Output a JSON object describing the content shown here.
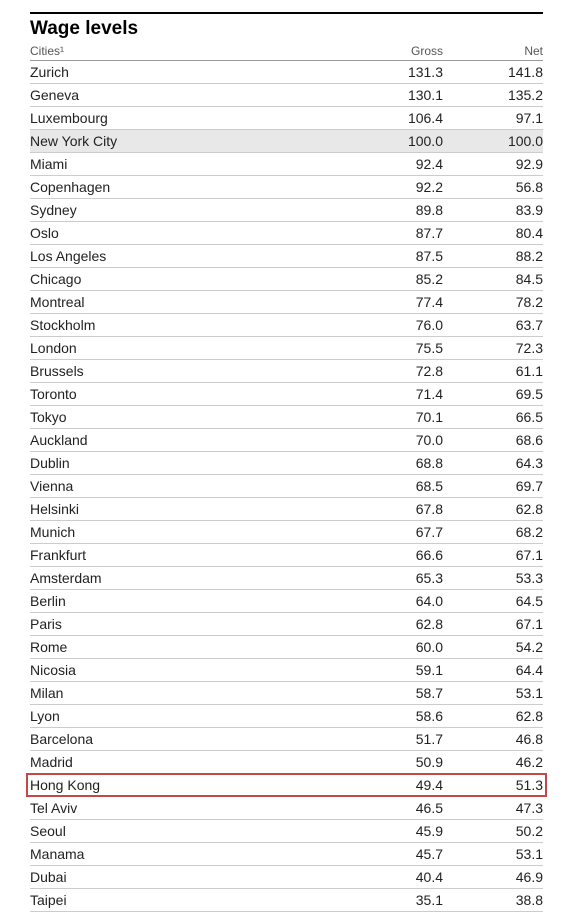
{
  "title": "Wage levels",
  "headers": {
    "city": "Cities¹",
    "gross": "Gross",
    "net": "Net"
  },
  "styling": {
    "background_color": "#ffffff",
    "title_fontsize": 19,
    "title_fontweight": "bold",
    "title_border_top": "2px solid #000",
    "header_fontsize": 12,
    "header_color": "#555",
    "row_fontsize": 14,
    "row_color": "#222",
    "row_border_color": "#ccc",
    "highlight_bg": "#e8e8e8",
    "box_border_color": "#c44848",
    "col_widths": {
      "gross": 110,
      "net": 100
    }
  },
  "rows": [
    {
      "city": "Zurich",
      "gross": "131.3",
      "net": "141.8",
      "highlighted": false,
      "boxed": false
    },
    {
      "city": "Geneva",
      "gross": "130.1",
      "net": "135.2",
      "highlighted": false,
      "boxed": false
    },
    {
      "city": "Luxembourg",
      "gross": "106.4",
      "net": "97.1",
      "highlighted": false,
      "boxed": false
    },
    {
      "city": "New York City",
      "gross": "100.0",
      "net": "100.0",
      "highlighted": true,
      "boxed": false
    },
    {
      "city": "Miami",
      "gross": "92.4",
      "net": "92.9",
      "highlighted": false,
      "boxed": false
    },
    {
      "city": "Copenhagen",
      "gross": "92.2",
      "net": "56.8",
      "highlighted": false,
      "boxed": false
    },
    {
      "city": "Sydney",
      "gross": "89.8",
      "net": "83.9",
      "highlighted": false,
      "boxed": false
    },
    {
      "city": "Oslo",
      "gross": "87.7",
      "net": "80.4",
      "highlighted": false,
      "boxed": false
    },
    {
      "city": "Los Angeles",
      "gross": "87.5",
      "net": "88.2",
      "highlighted": false,
      "boxed": false
    },
    {
      "city": "Chicago",
      "gross": "85.2",
      "net": "84.5",
      "highlighted": false,
      "boxed": false
    },
    {
      "city": "Montreal",
      "gross": "77.4",
      "net": "78.2",
      "highlighted": false,
      "boxed": false
    },
    {
      "city": "Stockholm",
      "gross": "76.0",
      "net": "63.7",
      "highlighted": false,
      "boxed": false
    },
    {
      "city": "London",
      "gross": "75.5",
      "net": "72.3",
      "highlighted": false,
      "boxed": false
    },
    {
      "city": "Brussels",
      "gross": "72.8",
      "net": "61.1",
      "highlighted": false,
      "boxed": false
    },
    {
      "city": "Toronto",
      "gross": "71.4",
      "net": "69.5",
      "highlighted": false,
      "boxed": false
    },
    {
      "city": "Tokyo",
      "gross": "70.1",
      "net": "66.5",
      "highlighted": false,
      "boxed": false
    },
    {
      "city": "Auckland",
      "gross": "70.0",
      "net": "68.6",
      "highlighted": false,
      "boxed": false
    },
    {
      "city": "Dublin",
      "gross": "68.8",
      "net": "64.3",
      "highlighted": false,
      "boxed": false
    },
    {
      "city": "Vienna",
      "gross": "68.5",
      "net": "69.7",
      "highlighted": false,
      "boxed": false
    },
    {
      "city": "Helsinki",
      "gross": "67.8",
      "net": "62.8",
      "highlighted": false,
      "boxed": false
    },
    {
      "city": "Munich",
      "gross": "67.7",
      "net": "68.2",
      "highlighted": false,
      "boxed": false
    },
    {
      "city": "Frankfurt",
      "gross": "66.6",
      "net": "67.1",
      "highlighted": false,
      "boxed": false
    },
    {
      "city": "Amsterdam",
      "gross": "65.3",
      "net": "53.3",
      "highlighted": false,
      "boxed": false
    },
    {
      "city": "Berlin",
      "gross": "64.0",
      "net": "64.5",
      "highlighted": false,
      "boxed": false
    },
    {
      "city": "Paris",
      "gross": "62.8",
      "net": "67.1",
      "highlighted": false,
      "boxed": false
    },
    {
      "city": "Rome",
      "gross": "60.0",
      "net": "54.2",
      "highlighted": false,
      "boxed": false
    },
    {
      "city": "Nicosia",
      "gross": "59.1",
      "net": "64.4",
      "highlighted": false,
      "boxed": false
    },
    {
      "city": "Milan",
      "gross": "58.7",
      "net": "53.1",
      "highlighted": false,
      "boxed": false
    },
    {
      "city": "Lyon",
      "gross": "58.6",
      "net": "62.8",
      "highlighted": false,
      "boxed": false
    },
    {
      "city": "Barcelona",
      "gross": "51.7",
      "net": "46.8",
      "highlighted": false,
      "boxed": false
    },
    {
      "city": "Madrid",
      "gross": "50.9",
      "net": "46.2",
      "highlighted": false,
      "boxed": false
    },
    {
      "city": "Hong Kong",
      "gross": "49.4",
      "net": "51.3",
      "highlighted": false,
      "boxed": true
    },
    {
      "city": "Tel Aviv",
      "gross": "46.5",
      "net": "47.3",
      "highlighted": false,
      "boxed": false
    },
    {
      "city": "Seoul",
      "gross": "45.9",
      "net": "50.2",
      "highlighted": false,
      "boxed": false
    },
    {
      "city": "Manama",
      "gross": "45.7",
      "net": "53.1",
      "highlighted": false,
      "boxed": false
    },
    {
      "city": "Dubai",
      "gross": "40.4",
      "net": "46.9",
      "highlighted": false,
      "boxed": false
    },
    {
      "city": "Taipei",
      "gross": "35.1",
      "net": "38.8",
      "highlighted": false,
      "boxed": false
    }
  ]
}
